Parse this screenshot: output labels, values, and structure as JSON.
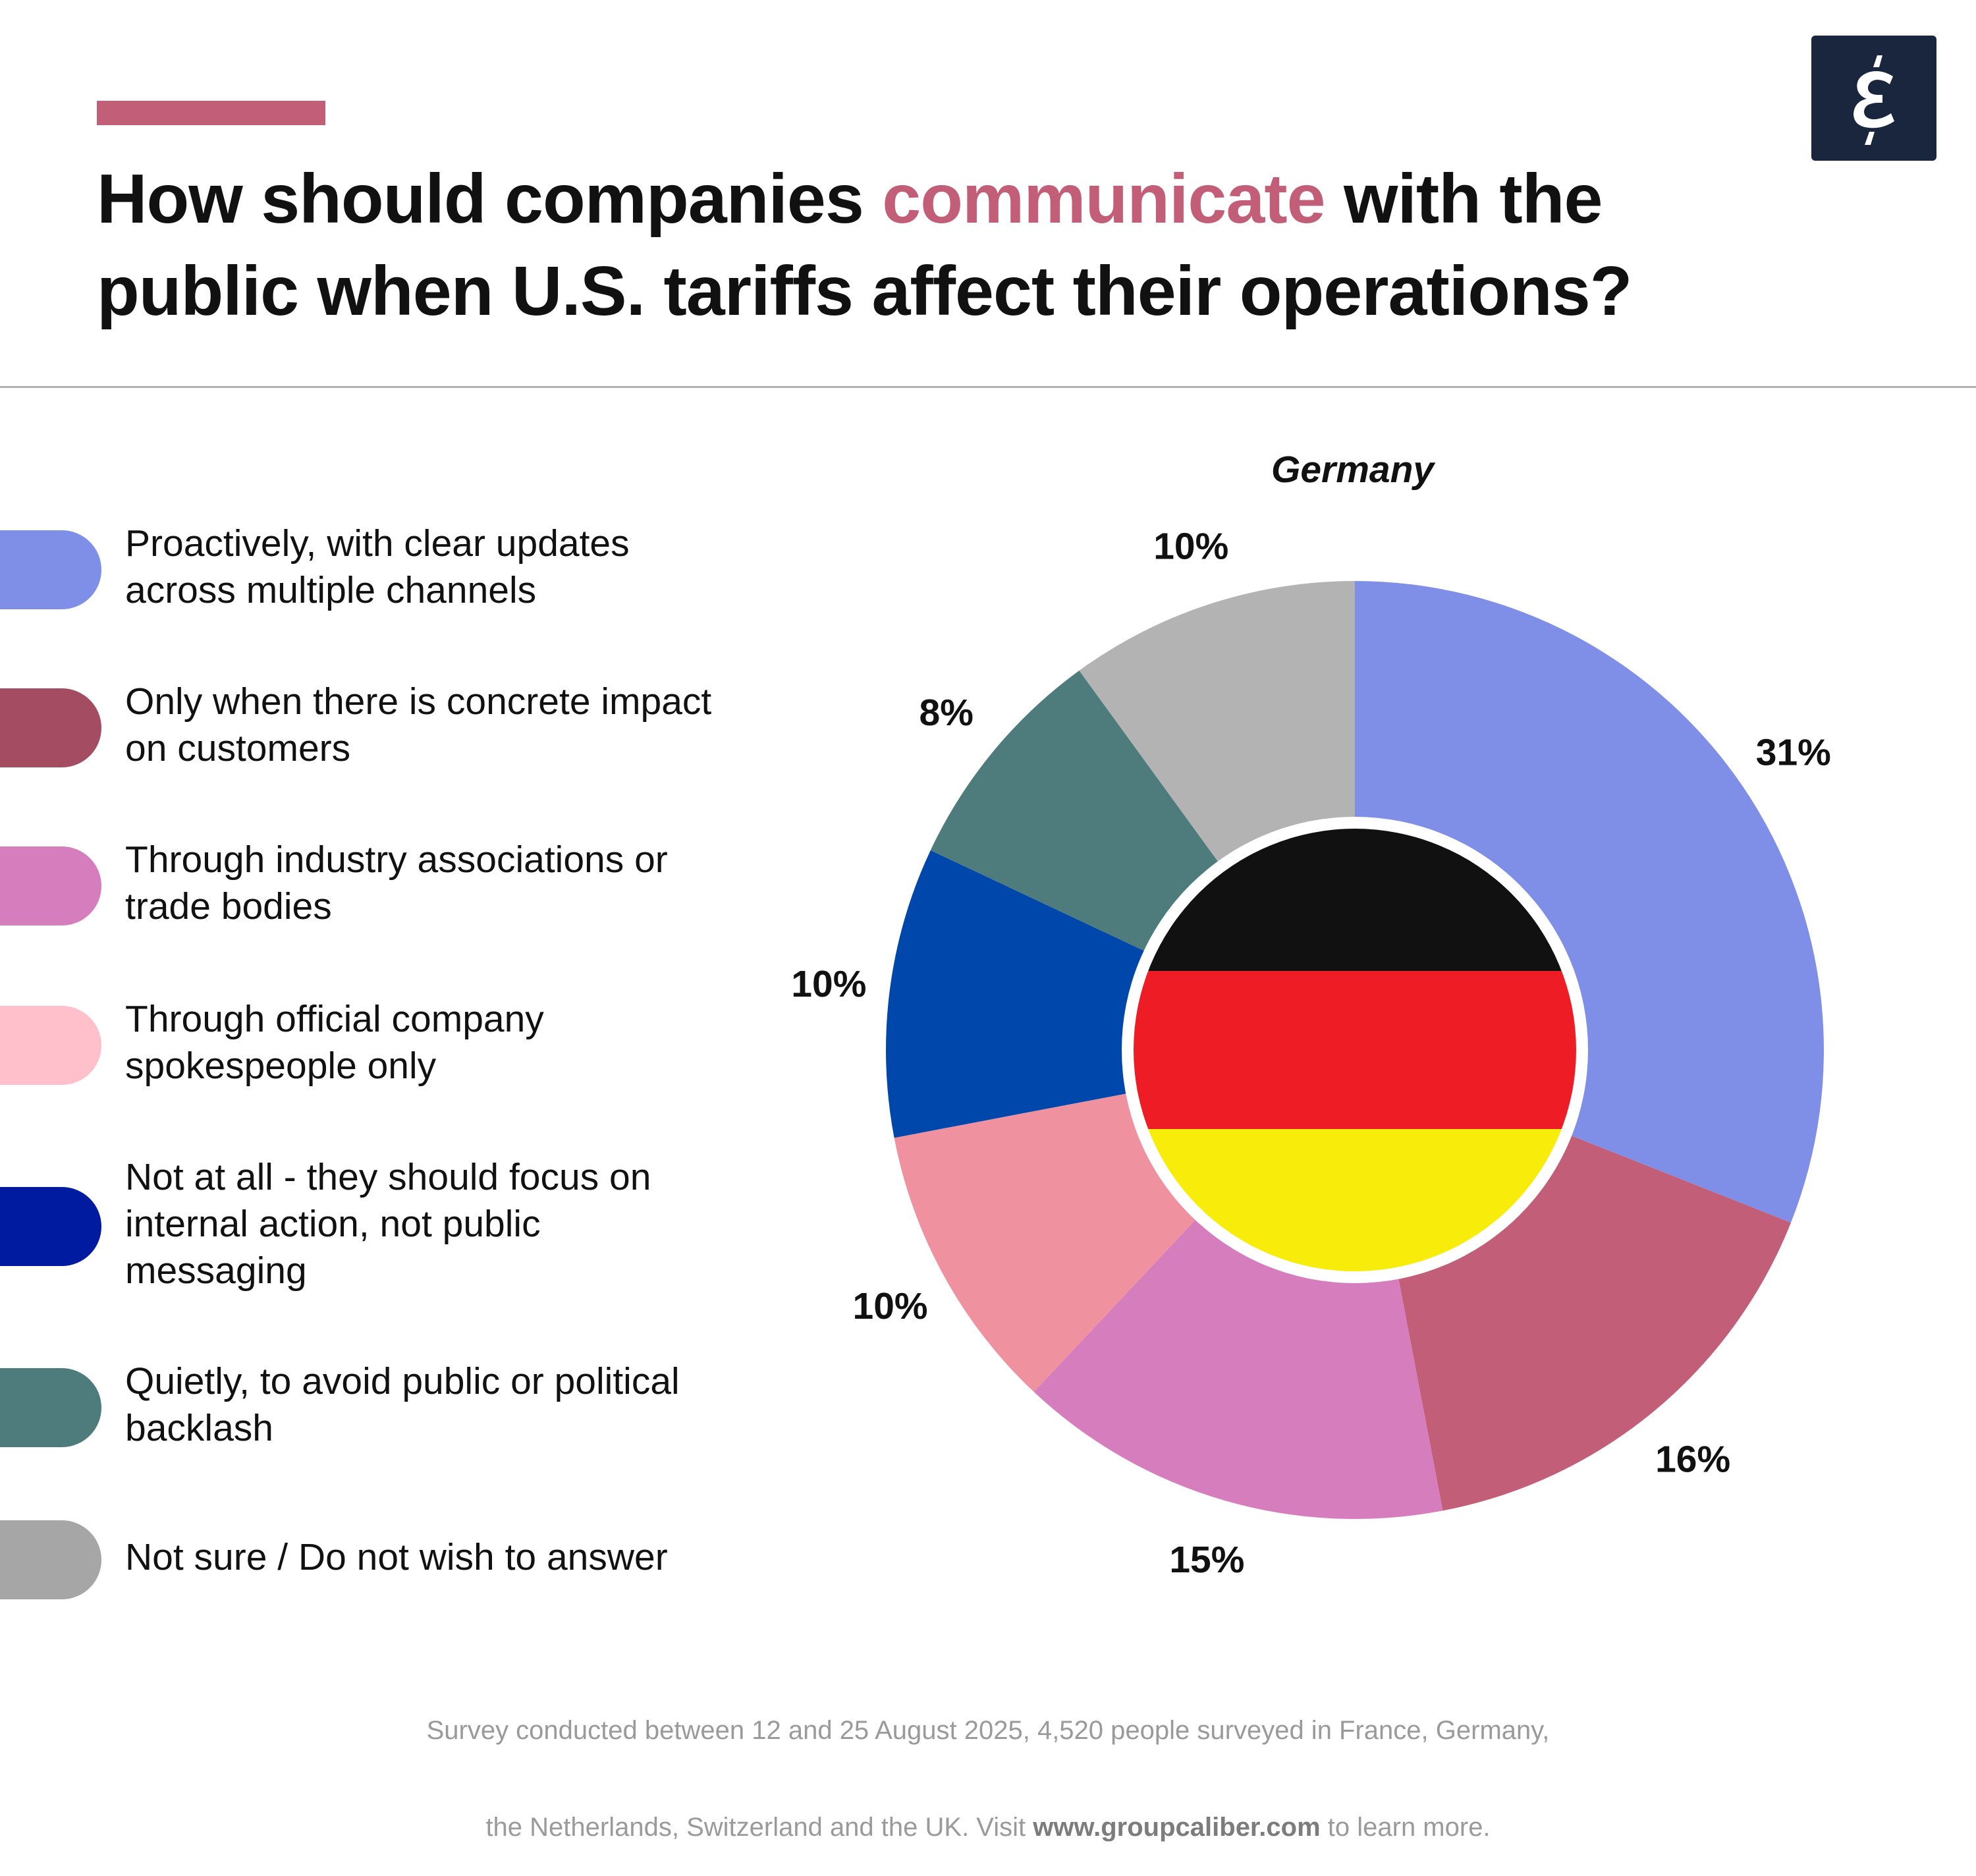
{
  "header": {
    "title_part1": "How should companies ",
    "title_highlight": "communicate",
    "title_part2": " with the public when U.S. tariffs affect their operations?",
    "accent_color": "#c25e77",
    "logo_icon": "epsilon-logo",
    "logo_glyph": "ε"
  },
  "chart_data": {
    "type": "pie",
    "donut": true,
    "title": "Germany",
    "center_image": "germany-flag",
    "categories": [
      "Proactively, with clear updates across multiple channels",
      "Only when there is concrete impact on customers",
      "Through industry associations or trade bodies",
      "Through official company spokespeople only",
      "Not at all - they should focus on internal action, not public messaging",
      "Quietly, to avoid public or political backlash",
      "Not sure / Do not wish to answer"
    ],
    "values": [
      31,
      16,
      15,
      10,
      10,
      8,
      10
    ],
    "labels": [
      "31%",
      "16%",
      "15%",
      "10%",
      "10%",
      "8%",
      "10%"
    ],
    "slice_colors": [
      "#7f8fe8",
      "#c25e77",
      "#d57dbd",
      "#f0919f",
      "#0047ab",
      "#4e7c7c",
      "#b3b3b3"
    ],
    "legend_colors": [
      "#7f8fe8",
      "#a44d62",
      "#d57dbd",
      "#ffbfcb",
      "#001aa0",
      "#4e7c7c",
      "#a6a6a6"
    ],
    "legend_placement": "left"
  },
  "footer": {
    "line1": "Survey conducted between 12 and 25 August 2025, 4,520 people surveyed in France, Germany,",
    "line2_pre": "the Netherlands, Switzerland and the UK. Visit ",
    "link": "www.groupcaliber.com",
    "line2_post": " to learn more."
  }
}
